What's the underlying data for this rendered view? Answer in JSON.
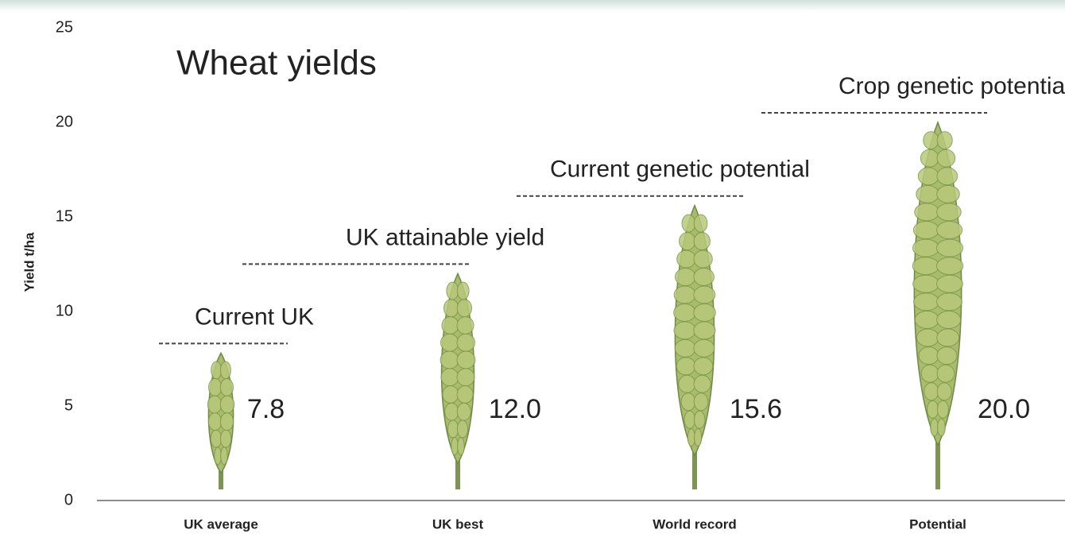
{
  "chart_data": {
    "type": "pictorial-bar",
    "title": "Wheat yields",
    "ylabel": "Yield t/ha",
    "categories": [
      "UK average",
      "UK best",
      "World record",
      "Potential"
    ],
    "values": [
      7.8,
      12.0,
      15.6,
      20.0
    ],
    "value_labels": [
      "7.8",
      "12.0",
      "15.6",
      "20.0"
    ],
    "annotations": [
      "Current UK",
      "UK attainable yield",
      "Current genetic potential",
      "Crop genetic potential"
    ],
    "color": "#a9bb6c",
    "ylim": [
      0,
      25
    ],
    "yticks": [
      0,
      5,
      10,
      15,
      20,
      25
    ],
    "grid": false
  }
}
